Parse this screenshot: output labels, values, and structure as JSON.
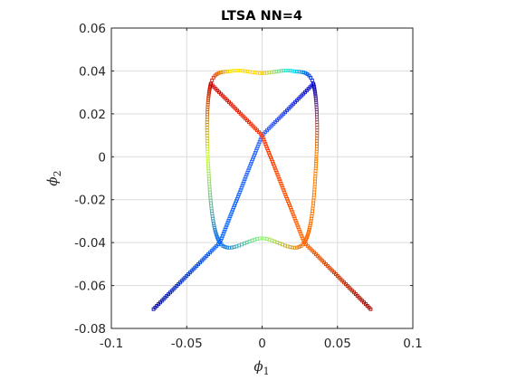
{
  "chart_data": {
    "type": "scatter",
    "title": "LTSA NN=4",
    "xlabel": {
      "symbol": "ϕ",
      "subscript": "1"
    },
    "ylabel": {
      "symbol": "ϕ",
      "subscript": "2"
    },
    "xlim": [
      -0.1,
      0.1
    ],
    "ylim": [
      -0.08,
      0.06
    ],
    "xticks": [
      -0.1,
      -0.05,
      0,
      0.05,
      0.1
    ],
    "xtick_labels": [
      "-0.1",
      "-0.05",
      "0",
      "0.05",
      "0.1"
    ],
    "yticks": [
      -0.08,
      -0.06,
      -0.04,
      -0.02,
      0,
      0.02,
      0.04,
      0.06
    ],
    "ytick_labels": [
      "-0.08",
      "-0.06",
      "-0.04",
      "-0.02",
      "0",
      "0.02",
      "0.04",
      "0.06"
    ],
    "grid": true,
    "colormap": "jet",
    "marker": "square",
    "series": [
      {
        "label": "ellipse",
        "center": [
          0.0,
          0.0
        ],
        "semi_axis_x": 0.036,
        "semi_axis_y": 0.039,
        "color_cycle_start": "red at upper-left (-0.034, 0.034)",
        "points": [
          {
            "x": -0.034,
            "y": 0.034,
            "color": "#cc0000"
          },
          {
            "x": -0.02,
            "y": 0.04,
            "color": "#ffee00"
          },
          {
            "x": 0.0,
            "y": 0.039,
            "color": "#ffcc00"
          },
          {
            "x": 0.02,
            "y": 0.04,
            "color": "#00eeff"
          },
          {
            "x": 0.034,
            "y": 0.034,
            "color": "#0000cc"
          },
          {
            "x": 0.036,
            "y": 0.0,
            "color": "#ff8800"
          },
          {
            "x": 0.028,
            "y": -0.04,
            "color": "#ff6600"
          },
          {
            "x": 0.0,
            "y": -0.038,
            "color": "#88ff66"
          },
          {
            "x": -0.028,
            "y": -0.04,
            "color": "#0066ff"
          },
          {
            "x": -0.036,
            "y": 0.0,
            "color": "#ccff33"
          }
        ]
      },
      {
        "label": "diagonal line rising",
        "points": [
          {
            "x": -0.072,
            "y": -0.071,
            "color": "#000099"
          },
          {
            "x": -0.028,
            "y": -0.04,
            "color": "#0066ff"
          },
          {
            "x": 0.0,
            "y": 0.01,
            "color": "#3366ff"
          },
          {
            "x": 0.034,
            "y": 0.034,
            "color": "#0000cc"
          }
        ]
      },
      {
        "label": "diagonal line falling",
        "points": [
          {
            "x": -0.034,
            "y": 0.034,
            "color": "#cc0000"
          },
          {
            "x": 0.0,
            "y": 0.01,
            "color": "#ff3300"
          },
          {
            "x": 0.028,
            "y": -0.04,
            "color": "#ff6600"
          },
          {
            "x": 0.072,
            "y": -0.071,
            "color": "#990000"
          }
        ]
      }
    ]
  }
}
